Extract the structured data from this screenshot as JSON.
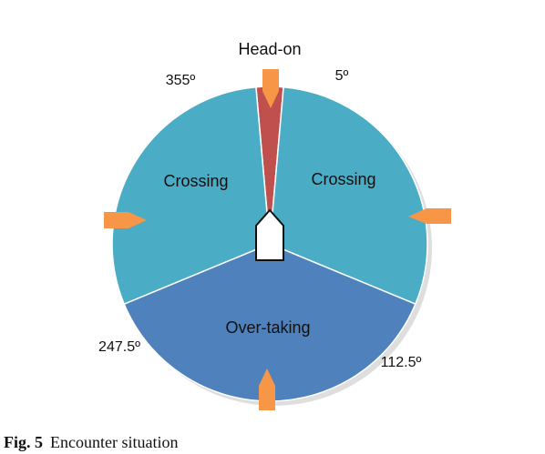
{
  "figure": {
    "number": "Fig. 5",
    "caption": "Encounter situation"
  },
  "sectors": [
    {
      "label": "Head-on",
      "from_deg": 355,
      "to_deg": 5,
      "color": "#c0504d"
    },
    {
      "label": "Crossing",
      "from_deg": 5,
      "to_deg": 112.5,
      "color": "#4bacc6"
    },
    {
      "label": "Over-taking",
      "from_deg": 112.5,
      "to_deg": 247.5,
      "color": "#4f81bd"
    },
    {
      "label": "Crossing",
      "from_deg": 247.5,
      "to_deg": 355,
      "color": "#4bacc6"
    }
  ],
  "angle_labels": [
    "355º",
    "5º",
    "247.5º",
    "112.5º"
  ],
  "colors": {
    "arrow": "#f79646",
    "ship_fill": "#ffffff",
    "ship_stroke": "#111111",
    "shadow": "#dedede"
  },
  "icons": [
    "arrow-down-icon",
    "arrow-left-icon",
    "arrow-right-icon",
    "arrow-up-icon",
    "own-ship-icon"
  ]
}
